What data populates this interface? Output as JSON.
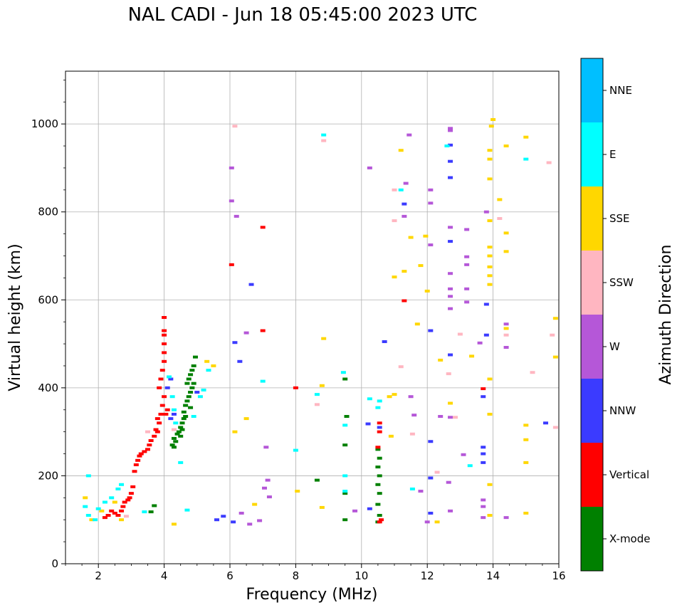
{
  "chart_data": {
    "type": "scatter",
    "title": "NAL CADI - Jun 18 05:45:00 2023 UTC",
    "xlabel": "Frequency (MHz)",
    "ylabel": "Virtual height (km)",
    "xlim": [
      1,
      16
    ],
    "ylim": [
      0,
      1120
    ],
    "xticks": [
      2,
      4,
      6,
      8,
      10,
      12,
      14,
      16
    ],
    "yticks": [
      0,
      200,
      400,
      600,
      800,
      1000
    ],
    "grid": true,
    "colorbar": {
      "label": "Azimuth Direction",
      "categories": [
        {
          "name": "X-mode",
          "color": "#008000"
        },
        {
          "name": "Vertical",
          "color": "#ff0000"
        },
        {
          "name": "NNW",
          "color": "#3b3bff"
        },
        {
          "name": "W",
          "color": "#b557d8"
        },
        {
          "name": "SSW",
          "color": "#ffb6c1"
        },
        {
          "name": "SSE",
          "color": "#ffd700"
        },
        {
          "name": "E",
          "color": "#00ffff"
        },
        {
          "name": "NNE",
          "color": "#00bfff"
        }
      ]
    },
    "series": [
      {
        "name": "X-mode",
        "points": [
          [
            4.25,
            270
          ],
          [
            4.3,
            285
          ],
          [
            4.35,
            278
          ],
          [
            4.4,
            295
          ],
          [
            4.45,
            300
          ],
          [
            4.5,
            310
          ],
          [
            4.55,
            320
          ],
          [
            4.6,
            330
          ],
          [
            4.6,
            345
          ],
          [
            4.65,
            360
          ],
          [
            4.7,
            370
          ],
          [
            4.75,
            380
          ],
          [
            4.8,
            390
          ],
          [
            4.85,
            400
          ],
          [
            4.7,
            410
          ],
          [
            4.75,
            420
          ],
          [
            4.8,
            430
          ],
          [
            4.85,
            440
          ],
          [
            4.9,
            450
          ],
          [
            4.55,
            305
          ],
          [
            4.5,
            290
          ],
          [
            4.65,
            335
          ],
          [
            4.8,
            355
          ],
          [
            4.9,
            410
          ],
          [
            4.95,
            470
          ],
          [
            3.6,
            118
          ],
          [
            3.7,
            132
          ],
          [
            10.5,
            95
          ],
          [
            10.55,
            110
          ],
          [
            10.5,
            135
          ],
          [
            10.55,
            160
          ],
          [
            10.5,
            180
          ],
          [
            10.55,
            200
          ],
          [
            10.5,
            220
          ],
          [
            10.55,
            240
          ],
          [
            10.5,
            260
          ],
          [
            9.5,
            100
          ],
          [
            9.5,
            160
          ],
          [
            9.5,
            270
          ],
          [
            9.55,
            335
          ],
          [
            9.5,
            420
          ],
          [
            8.65,
            190
          ],
          [
            4.3,
            265
          ]
        ]
      },
      {
        "name": "Vertical",
        "points": [
          [
            2.7,
            120
          ],
          [
            2.75,
            130
          ],
          [
            2.8,
            140
          ],
          [
            2.9,
            145
          ],
          [
            3.0,
            160
          ],
          [
            3.05,
            175
          ],
          [
            2.95,
            150
          ],
          [
            3.1,
            210
          ],
          [
            3.15,
            225
          ],
          [
            3.2,
            235
          ],
          [
            3.25,
            245
          ],
          [
            3.3,
            250
          ],
          [
            3.4,
            255
          ],
          [
            3.5,
            260
          ],
          [
            3.55,
            270
          ],
          [
            3.6,
            280
          ],
          [
            3.7,
            290
          ],
          [
            3.8,
            300
          ],
          [
            3.85,
            320
          ],
          [
            3.9,
            340
          ],
          [
            3.95,
            360
          ],
          [
            4.0,
            380
          ],
          [
            3.85,
            400
          ],
          [
            3.9,
            420
          ],
          [
            3.95,
            440
          ],
          [
            4.0,
            460
          ],
          [
            4.0,
            480
          ],
          [
            4.0,
            500
          ],
          [
            4.0,
            520
          ],
          [
            4.0,
            530
          ],
          [
            4.0,
            560
          ],
          [
            4.05,
            340
          ],
          [
            4.1,
            350
          ],
          [
            3.75,
            305
          ],
          [
            3.8,
            330
          ],
          [
            2.6,
            110
          ],
          [
            2.5,
            115
          ],
          [
            2.4,
            120
          ],
          [
            2.3,
            110
          ],
          [
            2.2,
            105
          ],
          [
            6.05,
            680
          ],
          [
            7.0,
            765
          ],
          [
            7.0,
            530
          ],
          [
            10.55,
            300
          ],
          [
            10.55,
            320
          ],
          [
            10.5,
            265
          ],
          [
            10.55,
            95
          ],
          [
            10.6,
            100
          ],
          [
            11.3,
            598
          ],
          [
            8.0,
            400
          ],
          [
            13.7,
            398
          ]
        ]
      },
      {
        "name": "NNW",
        "points": [
          [
            4.2,
            330
          ],
          [
            4.3,
            340
          ],
          [
            4.1,
            400
          ],
          [
            4.2,
            420
          ],
          [
            5.0,
            390
          ],
          [
            6.3,
            460
          ],
          [
            6.15,
            503
          ],
          [
            6.65,
            635
          ],
          [
            10.7,
            505
          ],
          [
            10.2,
            318
          ],
          [
            10.55,
            310
          ],
          [
            12.1,
            278
          ],
          [
            12.1,
            195
          ],
          [
            12.7,
            475
          ],
          [
            12.7,
            952
          ],
          [
            12.7,
            915
          ],
          [
            12.7,
            878
          ],
          [
            12.7,
            733
          ],
          [
            13.7,
            380
          ],
          [
            13.7,
            230
          ],
          [
            13.7,
            250
          ],
          [
            13.7,
            265
          ],
          [
            13.8,
            520
          ],
          [
            13.8,
            590
          ],
          [
            15.6,
            320
          ],
          [
            11.3,
            818
          ],
          [
            12.1,
            530
          ],
          [
            12.1,
            115
          ],
          [
            10.25,
            125
          ],
          [
            5.6,
            100
          ],
          [
            5.8,
            108
          ],
          [
            6.1,
            95
          ]
        ]
      },
      {
        "name": "W",
        "points": [
          [
            6.05,
            900
          ],
          [
            6.05,
            825
          ],
          [
            6.2,
            790
          ],
          [
            6.5,
            525
          ],
          [
            7.1,
            265
          ],
          [
            7.15,
            190
          ],
          [
            7.05,
            172
          ],
          [
            7.2,
            152
          ],
          [
            12.7,
            990
          ],
          [
            12.7,
            985
          ],
          [
            12.1,
            850
          ],
          [
            12.1,
            820
          ],
          [
            12.1,
            725
          ],
          [
            12.7,
            765
          ],
          [
            12.7,
            660
          ],
          [
            12.7,
            625
          ],
          [
            12.7,
            608
          ],
          [
            12.7,
            580
          ],
          [
            13.2,
            760
          ],
          [
            13.2,
            698
          ],
          [
            13.2,
            680
          ],
          [
            13.2,
            625
          ],
          [
            13.2,
            595
          ],
          [
            13.8,
            800
          ],
          [
            12.65,
            185
          ],
          [
            12.7,
            120
          ],
          [
            13.7,
            130
          ],
          [
            13.7,
            145
          ],
          [
            13.7,
            105
          ],
          [
            14.4,
            545
          ],
          [
            14.4,
            492
          ],
          [
            14.4,
            105
          ],
          [
            10.25,
            900
          ],
          [
            11.35,
            865
          ],
          [
            11.3,
            790
          ],
          [
            11.45,
            975
          ],
          [
            11.5,
            380
          ],
          [
            11.6,
            338
          ],
          [
            11.8,
            165
          ],
          [
            9.8,
            120
          ],
          [
            6.35,
            115
          ],
          [
            6.6,
            90
          ],
          [
            6.9,
            98
          ],
          [
            12.4,
            335
          ],
          [
            13.1,
            248
          ],
          [
            13.6,
            502
          ],
          [
            12.0,
            95
          ],
          [
            12.7,
            333
          ]
        ]
      },
      {
        "name": "SSW",
        "points": [
          [
            14.2,
            785
          ],
          [
            14.4,
            520
          ],
          [
            15.2,
            435
          ],
          [
            15.7,
            912
          ],
          [
            15.8,
            520
          ],
          [
            15.9,
            310
          ],
          [
            12.65,
            432
          ],
          [
            13.0,
            522
          ],
          [
            12.85,
            333
          ],
          [
            12.3,
            208
          ],
          [
            11.0,
            850
          ],
          [
            11.0,
            780
          ],
          [
            11.2,
            448
          ],
          [
            11.55,
            295
          ],
          [
            8.85,
            962
          ],
          [
            8.65,
            362
          ],
          [
            6.15,
            995
          ],
          [
            4.3,
            305
          ],
          [
            3.5,
            300
          ],
          [
            2.85,
            108
          ]
        ]
      },
      {
        "name": "SSE",
        "points": [
          [
            14.0,
            1010
          ],
          [
            13.95,
            995
          ],
          [
            13.9,
            940
          ],
          [
            13.9,
            920
          ],
          [
            13.9,
            875
          ],
          [
            13.9,
            780
          ],
          [
            13.9,
            720
          ],
          [
            13.9,
            700
          ],
          [
            13.9,
            675
          ],
          [
            13.9,
            655
          ],
          [
            13.9,
            635
          ],
          [
            13.9,
            420
          ],
          [
            13.9,
            340
          ],
          [
            13.9,
            180
          ],
          [
            13.9,
            110
          ],
          [
            14.2,
            828
          ],
          [
            14.4,
            950
          ],
          [
            14.4,
            752
          ],
          [
            14.4,
            710
          ],
          [
            14.4,
            535
          ],
          [
            15.0,
            970
          ],
          [
            15.0,
            315
          ],
          [
            15.0,
            282
          ],
          [
            15.0,
            230
          ],
          [
            15.0,
            115
          ],
          [
            15.9,
            558
          ],
          [
            15.9,
            470
          ],
          [
            12.0,
            620
          ],
          [
            12.4,
            463
          ],
          [
            12.7,
            365
          ],
          [
            13.35,
            472
          ],
          [
            11.2,
            940
          ],
          [
            11.0,
            652
          ],
          [
            11.0,
            385
          ],
          [
            11.3,
            665
          ],
          [
            11.5,
            742
          ],
          [
            11.7,
            545
          ],
          [
            11.8,
            678
          ],
          [
            11.95,
            745
          ],
          [
            12.3,
            95
          ],
          [
            8.05,
            165
          ],
          [
            8.85,
            512
          ],
          [
            8.8,
            405
          ],
          [
            8.8,
            128
          ],
          [
            6.15,
            300
          ],
          [
            6.5,
            330
          ],
          [
            6.75,
            135
          ],
          [
            5.5,
            450
          ],
          [
            5.3,
            460
          ],
          [
            4.3,
            90
          ],
          [
            1.6,
            150
          ],
          [
            1.8,
            100
          ],
          [
            2.1,
            120
          ],
          [
            2.5,
            140
          ],
          [
            2.7,
            100
          ],
          [
            10.85,
            380
          ],
          [
            10.9,
            290
          ]
        ]
      },
      {
        "name": "E",
        "points": [
          [
            1.7,
            200
          ],
          [
            1.6,
            130
          ],
          [
            1.7,
            110
          ],
          [
            1.9,
            100
          ],
          [
            2.0,
            125
          ],
          [
            2.2,
            140
          ],
          [
            2.4,
            150
          ],
          [
            2.6,
            170
          ],
          [
            2.7,
            180
          ],
          [
            3.4,
            118
          ],
          [
            4.15,
            425
          ],
          [
            4.25,
            380
          ],
          [
            4.3,
            350
          ],
          [
            4.35,
            320
          ],
          [
            4.9,
            335
          ],
          [
            5.1,
            380
          ],
          [
            5.2,
            395
          ],
          [
            5.35,
            440
          ],
          [
            4.7,
            122
          ],
          [
            4.5,
            230
          ],
          [
            9.45,
            435
          ],
          [
            9.5,
            315
          ],
          [
            9.5,
            200
          ],
          [
            9.5,
            165
          ],
          [
            10.25,
            375
          ],
          [
            10.5,
            355
          ],
          [
            10.55,
            370
          ],
          [
            11.55,
            170
          ],
          [
            12.6,
            950
          ],
          [
            13.3,
            223
          ],
          [
            15.0,
            920
          ],
          [
            7.0,
            415
          ],
          [
            8.0,
            258
          ],
          [
            8.65,
            385
          ],
          [
            8.85,
            975
          ],
          [
            11.2,
            850
          ]
        ]
      }
    ]
  }
}
